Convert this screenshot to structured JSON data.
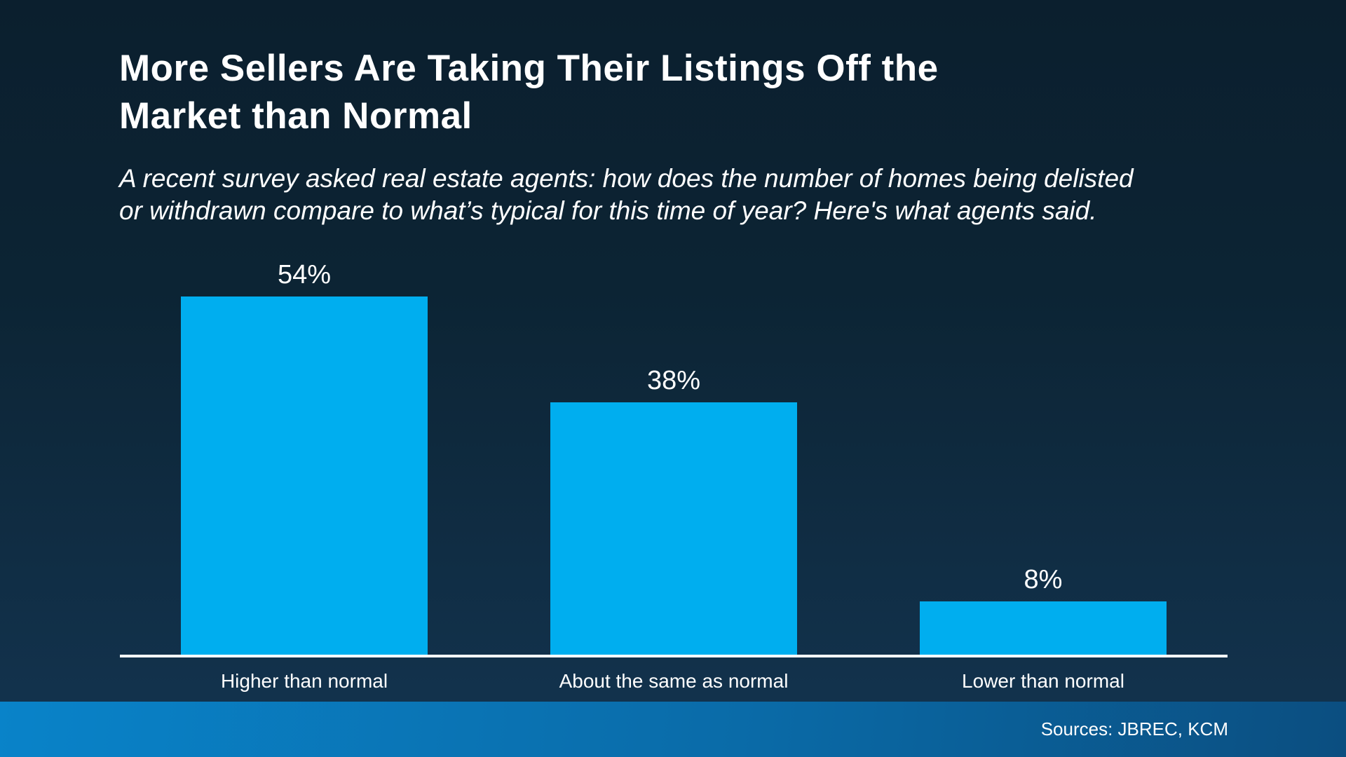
{
  "slide": {
    "title_lines": [
      "More Sellers Are Taking Their Listings Off the",
      "Market than Normal"
    ],
    "subtitle_lines": [
      "A recent survey asked real estate agents: how does the number of homes being delisted",
      "or withdrawn compare to what’s typical for this time of year? Here's what agents said."
    ],
    "footer": {
      "sources_label": "Sources: JBREC, KCM"
    }
  },
  "colors": {
    "background_top": "#0b1f2e",
    "background_bottom": "#133450",
    "bar_fill": "#00AEEF",
    "baseline": "#ffffff",
    "text": "#ffffff",
    "footer_gradient_left": "#0983C9",
    "footer_gradient_right": "#0B4E80"
  },
  "chart_data": {
    "type": "bar",
    "title": "More Sellers Are Taking Their Listings Off the Market than Normal",
    "subtitle": "A recent survey asked real estate agents: how does the number of homes being delisted or withdrawn compare to what’s typical for this time of year? Here's what agents said.",
    "categories": [
      "Higher than normal",
      "About the same as normal",
      "Lower than normal"
    ],
    "values": [
      54,
      38,
      8
    ],
    "value_labels": [
      "54%",
      "38%",
      "8%"
    ],
    "xlabel": "",
    "ylabel": "",
    "ylim": [
      0,
      60
    ],
    "grid": false,
    "legend": false,
    "bar_color": "#00AEEF",
    "source": "Sources: JBREC, KCM"
  }
}
